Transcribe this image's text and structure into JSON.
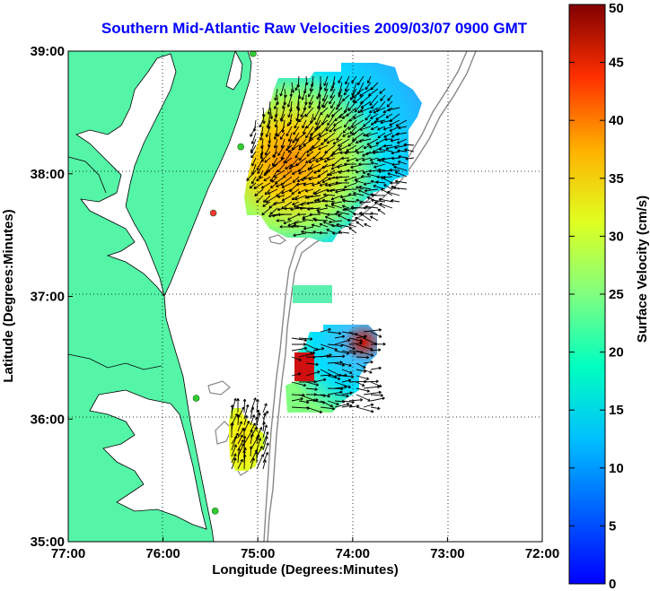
{
  "title": "Southern Mid-Atlantic Raw Velocities 2009/03/07 0900 GMT",
  "map": {
    "xlabel": "Longitude (Degrees:Minutes)",
    "ylabel": "Latitude (Degrees:Minutes)",
    "x_ticks": [
      "77:00",
      "76:00",
      "75:00",
      "74:00",
      "73:00",
      "72:00"
    ],
    "y_ticks": [
      "39:00",
      "38:00",
      "37:00",
      "36:00",
      "35:00"
    ],
    "x_range": [
      -77,
      -72
    ],
    "y_range": [
      35,
      39
    ],
    "land_color": "#55f5a8",
    "water_color": "#ffffff",
    "contour_color": "#888888",
    "grid": "dotted"
  },
  "colorbar": {
    "label": "Surface Velocity (cm/s)",
    "ticks": [
      "50",
      "45",
      "40",
      "35",
      "30",
      "25",
      "20",
      "15",
      "10",
      "5",
      "0"
    ],
    "range": [
      0,
      50
    ],
    "colormap": "jet"
  },
  "stations": [
    {
      "lon": -75.05,
      "lat": 38.98,
      "color": "#33cc33"
    },
    {
      "lon": -75.18,
      "lat": 38.22,
      "color": "#33cc33"
    },
    {
      "lon": -75.47,
      "lat": 37.68,
      "color": "#ff3333"
    },
    {
      "lon": -75.65,
      "lat": 36.17,
      "color": "#33cc33"
    },
    {
      "lon": -75.45,
      "lat": 35.25,
      "color": "#33cc33"
    }
  ],
  "velocity_patches": [
    {
      "region": "north",
      "speed_range_cm_s": [
        3,
        35
      ]
    },
    {
      "region": "middle-strip",
      "speed_range_cm_s": [
        10,
        20
      ]
    },
    {
      "region": "southeast",
      "speed_range_cm_s": [
        5,
        45
      ]
    },
    {
      "region": "southwest",
      "speed_range_cm_s": [
        15,
        30
      ]
    }
  ]
}
